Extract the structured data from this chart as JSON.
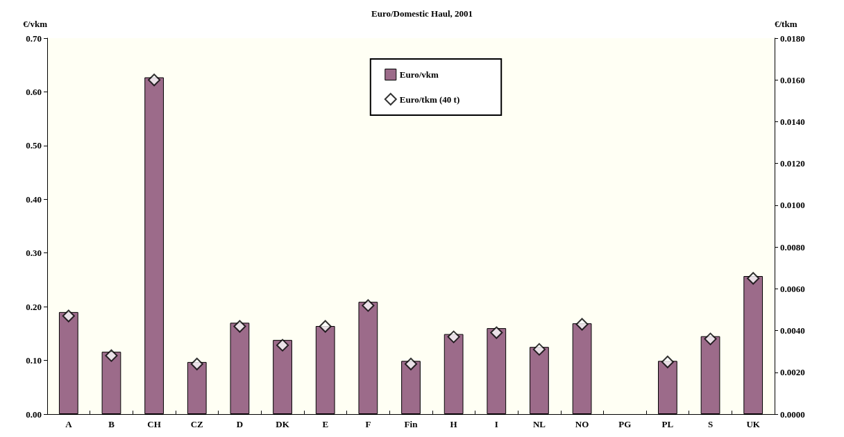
{
  "chart_data": {
    "type": "bar",
    "title": "Euro/Domestic Haul, 2001",
    "ylabel": "€/vkm",
    "y2label": "€/tkm",
    "categories": [
      "A",
      "B",
      "CH",
      "CZ",
      "D",
      "DK",
      "E",
      "F",
      "Fin",
      "H",
      "I",
      "NL",
      "NO",
      "PG",
      "PL",
      "S",
      "UK"
    ],
    "series": [
      {
        "name": "Euro/vkm",
        "color": "#9c6b8a",
        "values": [
          0.19,
          0.116,
          0.627,
          0.097,
          0.17,
          0.138,
          0.164,
          0.209,
          0.099,
          0.149,
          0.16,
          0.125,
          0.169,
          null,
          0.099,
          0.145,
          0.257
        ]
      },
      {
        "name": "Euro/tkm (40 t)",
        "type": "scatter",
        "axis": "y2",
        "color": "#ffffff",
        "marker": "diamond",
        "values": [
          0.0047,
          0.0028,
          0.016,
          0.0024,
          0.0042,
          0.0033,
          0.0042,
          0.0052,
          0.0024,
          0.0037,
          0.0039,
          0.0031,
          0.0043,
          null,
          0.0025,
          0.0036,
          0.0065
        ]
      }
    ],
    "ylim": [
      0,
      0.7
    ],
    "yticks": [
      {
        "value": 0,
        "label": "0.00"
      },
      {
        "value": 0.1,
        "label": "0.10"
      },
      {
        "value": 0.2,
        "label": "0.20"
      },
      {
        "value": 0.3,
        "label": "0.30"
      },
      {
        "value": 0.4,
        "label": "0.40"
      },
      {
        "value": 0.5,
        "label": "0.50"
      },
      {
        "value": 0.6,
        "label": "0.60"
      },
      {
        "value": 0.7,
        "label": "0.70"
      }
    ],
    "y2lim": [
      0,
      0.018
    ],
    "y2ticks": [
      {
        "value": 0,
        "label": "0.0000"
      },
      {
        "value": 0.002,
        "label": "0.0020"
      },
      {
        "value": 0.004,
        "label": "0.0040"
      },
      {
        "value": 0.006,
        "label": "0.0060"
      },
      {
        "value": 0.008,
        "label": "0.0080"
      },
      {
        "value": 0.01,
        "label": "0.0100"
      },
      {
        "value": 0.012,
        "label": "0.0120"
      },
      {
        "value": 0.014,
        "label": "0.0140"
      },
      {
        "value": 0.016,
        "label": "0.0160"
      },
      {
        "value": 0.018,
        "label": "0.0180"
      }
    ],
    "grid": false,
    "legend": "top"
  }
}
